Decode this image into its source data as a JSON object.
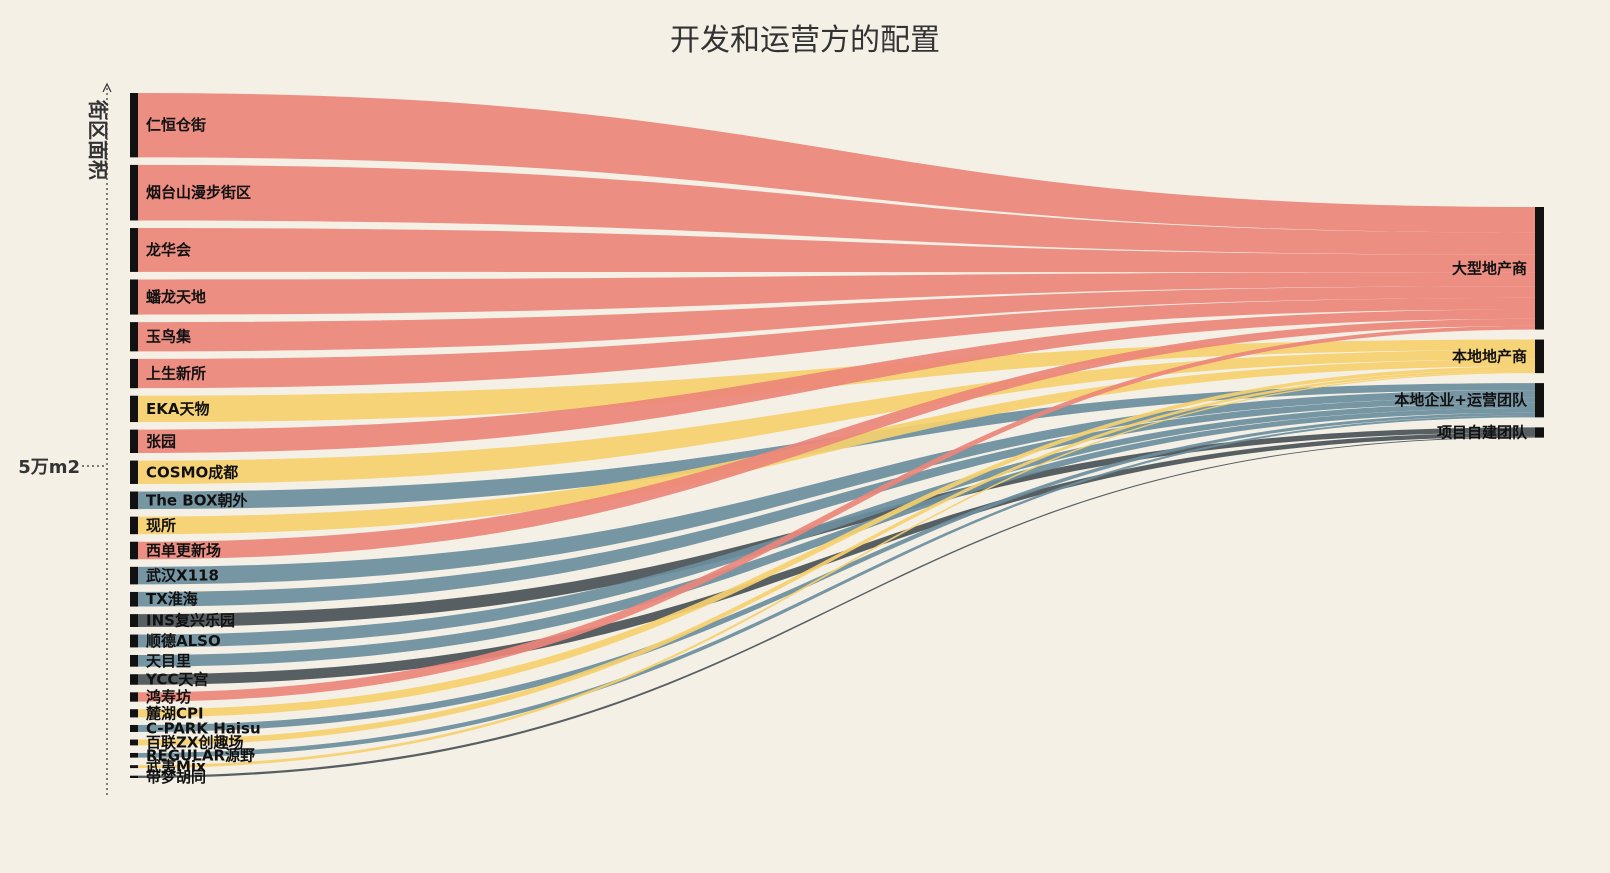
{
  "chart_data": {
    "type": "sankey",
    "title": "开发和运营方的配置",
    "ylabel": "街区面积",
    "scale_label": "5万m2",
    "categories": [
      {
        "name": "大型地产商",
        "color": "#ec8679"
      },
      {
        "name": "本地地产商",
        "color": "#f6d06e"
      },
      {
        "name": "本地企业+运营团队",
        "color": "#6b8e9e"
      },
      {
        "name": "项目自建团队",
        "color": "#4a5357"
      }
    ],
    "links": [
      {
        "source": "仁恒仓街",
        "target": "大型地产商",
        "value": 11.0
      },
      {
        "source": "烟台山漫步街区",
        "target": "大型地产商",
        "value": 9.5
      },
      {
        "source": "龙华会",
        "target": "大型地产商",
        "value": 7.5
      },
      {
        "source": "蟠龙天地",
        "target": "大型地产商",
        "value": 6.0
      },
      {
        "source": "玉鸟集",
        "target": "大型地产商",
        "value": 5.0
      },
      {
        "source": "上生新所",
        "target": "大型地产商",
        "value": 5.0
      },
      {
        "source": "EKA天物",
        "target": "本地地产商",
        "value": 4.5
      },
      {
        "source": "张园",
        "target": "大型地产商",
        "value": 4.0
      },
      {
        "source": "COSMO成都",
        "target": "本地地产商",
        "value": 4.0
      },
      {
        "source": "The BOX朝外",
        "target": "本地企业+运营团队",
        "value": 3.0
      },
      {
        "source": "现所",
        "target": "本地地产商",
        "value": 3.0
      },
      {
        "source": "西单更新场",
        "target": "大型地产商",
        "value": 3.0
      },
      {
        "source": "武汉X118",
        "target": "本地企业+运营团队",
        "value": 3.0
      },
      {
        "source": "TX淮海",
        "target": "本地企业+运营团队",
        "value": 2.5
      },
      {
        "source": "INS复兴乐园",
        "target": "项目自建团队",
        "value": 2.2
      },
      {
        "source": "顺德ALSO",
        "target": "本地企业+运营团队",
        "value": 2.2
      },
      {
        "source": "天目里",
        "target": "本地企业+运营团队",
        "value": 2.0
      },
      {
        "source": "YCC天宫",
        "target": "项目自建团队",
        "value": 1.8
      },
      {
        "source": "鸿寿坊",
        "target": "大型地产商",
        "value": 1.6
      },
      {
        "source": "麓湖CPI",
        "target": "本地地产商",
        "value": 1.4
      },
      {
        "source": "C-PARK Haisu",
        "target": "本地企业+运营团队",
        "value": 1.2
      },
      {
        "source": "百联ZX创趣场",
        "target": "本地地产商",
        "value": 1.0
      },
      {
        "source": "REGULAR源野",
        "target": "本地企业+运营团队",
        "value": 0.8
      },
      {
        "source": "武夷Mix",
        "target": "本地地产商",
        "value": 0.5
      },
      {
        "source": "带梦胡同",
        "target": "项目自建团队",
        "value": 0.4
      }
    ]
  }
}
